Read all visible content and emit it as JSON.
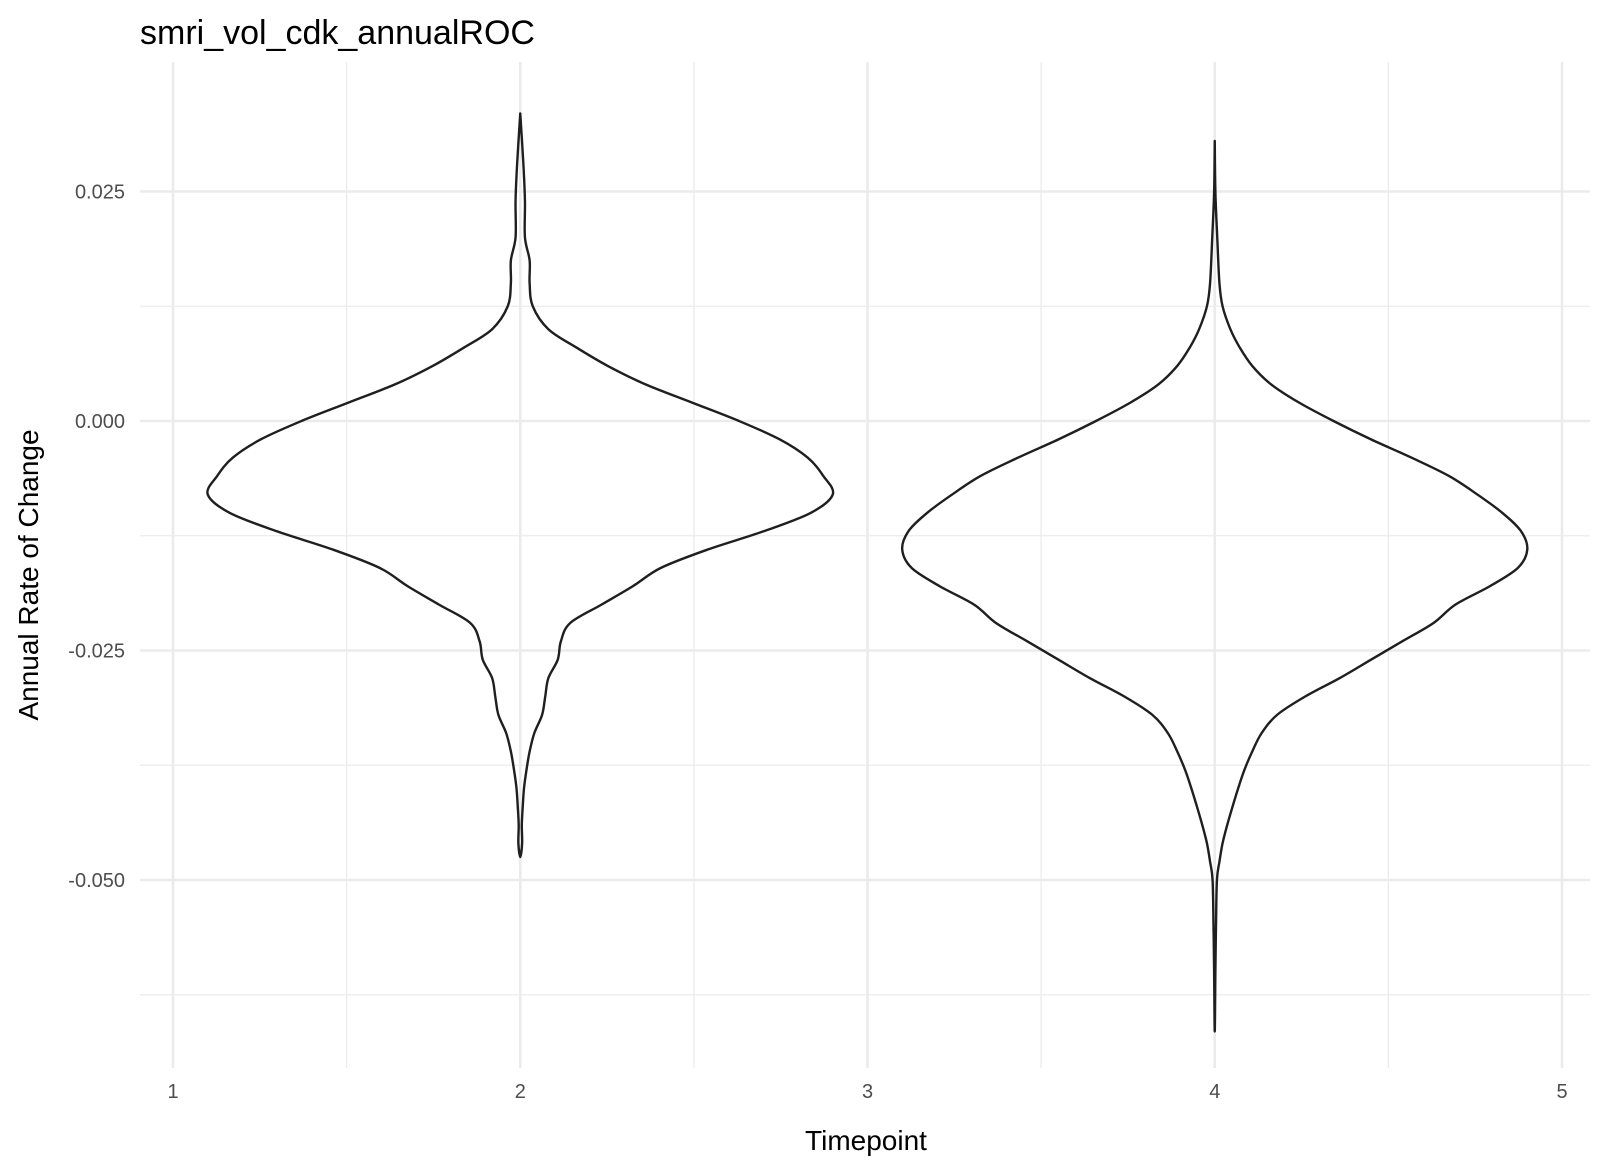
{
  "chart_data": {
    "type": "violin",
    "title": "smri_vol_cdk_annualROC",
    "xlabel": "Timepoint",
    "ylabel": "Annual Rate of Change",
    "x_ticks": [
      "1",
      "2",
      "3",
      "4",
      "5"
    ],
    "y_ticks": [
      "0.025",
      "0.000",
      "-0.025",
      "-0.050"
    ],
    "xlim": [
      1,
      5
    ],
    "ylim": [
      -0.07,
      0.038
    ],
    "grid": true,
    "series": [
      {
        "x": 2,
        "min": -0.0475,
        "max": 0.0335,
        "profile": [
          [
            0.0335,
            0.0
          ],
          [
            0.028,
            0.01
          ],
          [
            0.024,
            0.015
          ],
          [
            0.02,
            0.015
          ],
          [
            0.0175,
            0.03
          ],
          [
            0.015,
            0.03
          ],
          [
            0.0125,
            0.04
          ],
          [
            0.01,
            0.09
          ],
          [
            0.008,
            0.18
          ],
          [
            0.006,
            0.28
          ],
          [
            0.004,
            0.4
          ],
          [
            0.002,
            0.55
          ],
          [
            0.0,
            0.7
          ],
          [
            -0.002,
            0.83
          ],
          [
            -0.004,
            0.92
          ],
          [
            -0.006,
            0.97
          ],
          [
            -0.008,
            1.0
          ],
          [
            -0.01,
            0.93
          ],
          [
            -0.012,
            0.78
          ],
          [
            -0.014,
            0.6
          ],
          [
            -0.016,
            0.45
          ],
          [
            -0.018,
            0.36
          ],
          [
            -0.02,
            0.26
          ],
          [
            -0.022,
            0.16
          ],
          [
            -0.024,
            0.13
          ],
          [
            -0.026,
            0.12
          ],
          [
            -0.028,
            0.09
          ],
          [
            -0.03,
            0.08
          ],
          [
            -0.032,
            0.07
          ],
          [
            -0.034,
            0.045
          ],
          [
            -0.036,
            0.03
          ],
          [
            -0.038,
            0.02
          ],
          [
            -0.04,
            0.012
          ],
          [
            -0.042,
            0.008
          ],
          [
            -0.044,
            0.005
          ],
          [
            -0.046,
            0.006
          ],
          [
            -0.0475,
            0.0
          ]
        ]
      },
      {
        "x": 4,
        "min": -0.0665,
        "max": 0.0305,
        "profile": [
          [
            0.0305,
            0.0
          ],
          [
            0.025,
            0.002
          ],
          [
            0.02,
            0.008
          ],
          [
            0.015,
            0.015
          ],
          [
            0.0125,
            0.025
          ],
          [
            0.01,
            0.05
          ],
          [
            0.008,
            0.08
          ],
          [
            0.006,
            0.12
          ],
          [
            0.004,
            0.18
          ],
          [
            0.002,
            0.27
          ],
          [
            0.0,
            0.38
          ],
          [
            -0.002,
            0.5
          ],
          [
            -0.004,
            0.63
          ],
          [
            -0.006,
            0.75
          ],
          [
            -0.008,
            0.84
          ],
          [
            -0.01,
            0.92
          ],
          [
            -0.012,
            0.98
          ],
          [
            -0.014,
            1.0
          ],
          [
            -0.016,
            0.97
          ],
          [
            -0.018,
            0.88
          ],
          [
            -0.02,
            0.77
          ],
          [
            -0.022,
            0.7
          ],
          [
            -0.024,
            0.6
          ],
          [
            -0.026,
            0.5
          ],
          [
            -0.028,
            0.4
          ],
          [
            -0.03,
            0.29
          ],
          [
            -0.032,
            0.2
          ],
          [
            -0.034,
            0.15
          ],
          [
            -0.036,
            0.12
          ],
          [
            -0.038,
            0.095
          ],
          [
            -0.04,
            0.075
          ],
          [
            -0.042,
            0.057
          ],
          [
            -0.044,
            0.04
          ],
          [
            -0.046,
            0.025
          ],
          [
            -0.048,
            0.015
          ],
          [
            -0.05,
            0.007
          ],
          [
            -0.055,
            0.004
          ],
          [
            -0.06,
            0.002
          ],
          [
            -0.0665,
            0.0
          ]
        ]
      }
    ],
    "max_half_width_units": 0.9
  }
}
